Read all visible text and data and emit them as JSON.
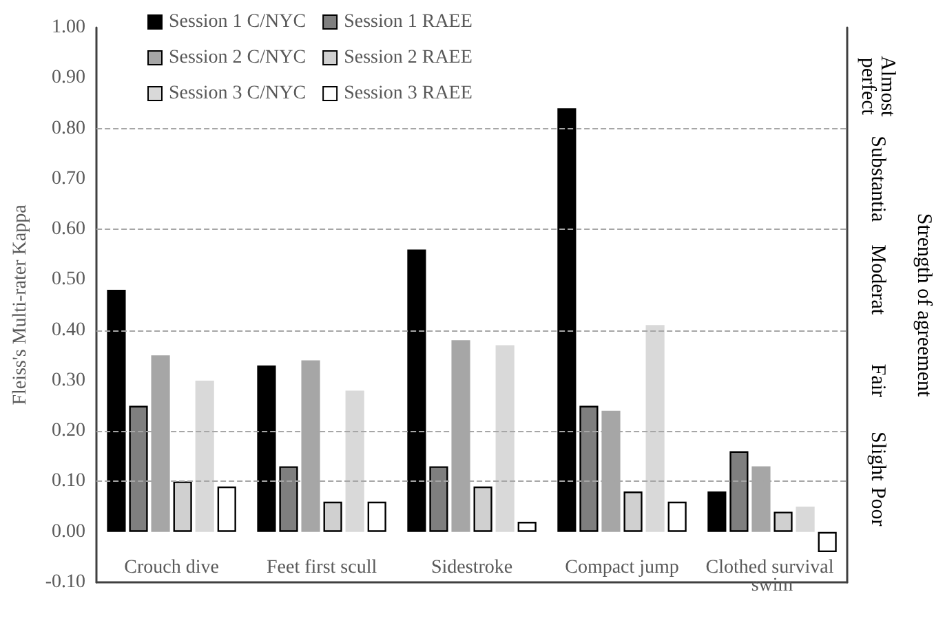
{
  "chart_data": {
    "type": "bar",
    "ylabel": "Fleiss's Multi-rater Kappa",
    "y2label": "Strength of agreement",
    "categories": [
      "Crouch dive",
      "Feet first scull",
      "Sidestroke",
      "Compact jump",
      "Clothed survival swim"
    ],
    "series": [
      {
        "name": "Session 1 C/NYC",
        "color": "#000000",
        "values": [
          0.48,
          0.33,
          0.56,
          0.84,
          0.08
        ]
      },
      {
        "name": "Session 1 RAEE",
        "color": "#7f7f7f",
        "values": [
          0.25,
          0.13,
          0.13,
          0.25,
          0.16
        ]
      },
      {
        "name": "Session 2 C/NYC",
        "color": "#a6a6a6",
        "values": [
          0.35,
          0.34,
          0.38,
          0.24,
          0.13
        ]
      },
      {
        "name": "Session 2 RAEE",
        "color": "#d0d0d0",
        "values": [
          0.1,
          0.06,
          0.09,
          0.08,
          0.04
        ]
      },
      {
        "name": "Session 3 C/NYC",
        "color": "#d9d9d9",
        "values": [
          0.3,
          0.28,
          0.37,
          0.41,
          0.05
        ]
      },
      {
        "name": "Session 3 RAEE",
        "color": "#ffffff",
        "values": [
          0.09,
          0.06,
          0.02,
          0.06,
          -0.04
        ]
      }
    ],
    "ylim": [
      -0.1,
      1.0
    ],
    "yticks": [
      {
        "value": -0.1,
        "label": "-0.10"
      },
      {
        "value": 0,
        "label": "0.00"
      },
      {
        "value": 0.1,
        "label": "0.10"
      },
      {
        "value": 0.2,
        "label": "0.20"
      },
      {
        "value": 0.3,
        "label": "0.30"
      },
      {
        "value": 0.4,
        "label": "0.40"
      },
      {
        "value": 0.5,
        "label": "0.50"
      },
      {
        "value": 0.6,
        "label": "0.60"
      },
      {
        "value": 0.7,
        "label": "0.70"
      },
      {
        "value": 0.8,
        "label": "0.80"
      },
      {
        "value": 0.9,
        "label": "0.90"
      },
      {
        "value": 1.0,
        "label": "1.00"
      }
    ],
    "ref_lines": [
      {
        "axis": "y",
        "value": 0.1,
        "color": "#a6a6a6",
        "line_style": "dashed"
      },
      {
        "axis": "y",
        "value": 0.2,
        "color": "#a6a6a6",
        "line_style": "dashed"
      },
      {
        "axis": "y",
        "value": 0.4,
        "color": "#a6a6a6",
        "line_style": "dashed"
      },
      {
        "axis": "y",
        "value": 0.6,
        "color": "#a6a6a6",
        "line_style": "dashed"
      },
      {
        "axis": "y",
        "value": 0.8,
        "color": "#a6a6a6",
        "line_style": "dashed"
      }
    ],
    "annotations": [
      "Almost perfect",
      "Substantia",
      "Moderat",
      "Fair",
      "Slight",
      "Poor"
    ],
    "grid": false,
    "legend": "top left"
  }
}
